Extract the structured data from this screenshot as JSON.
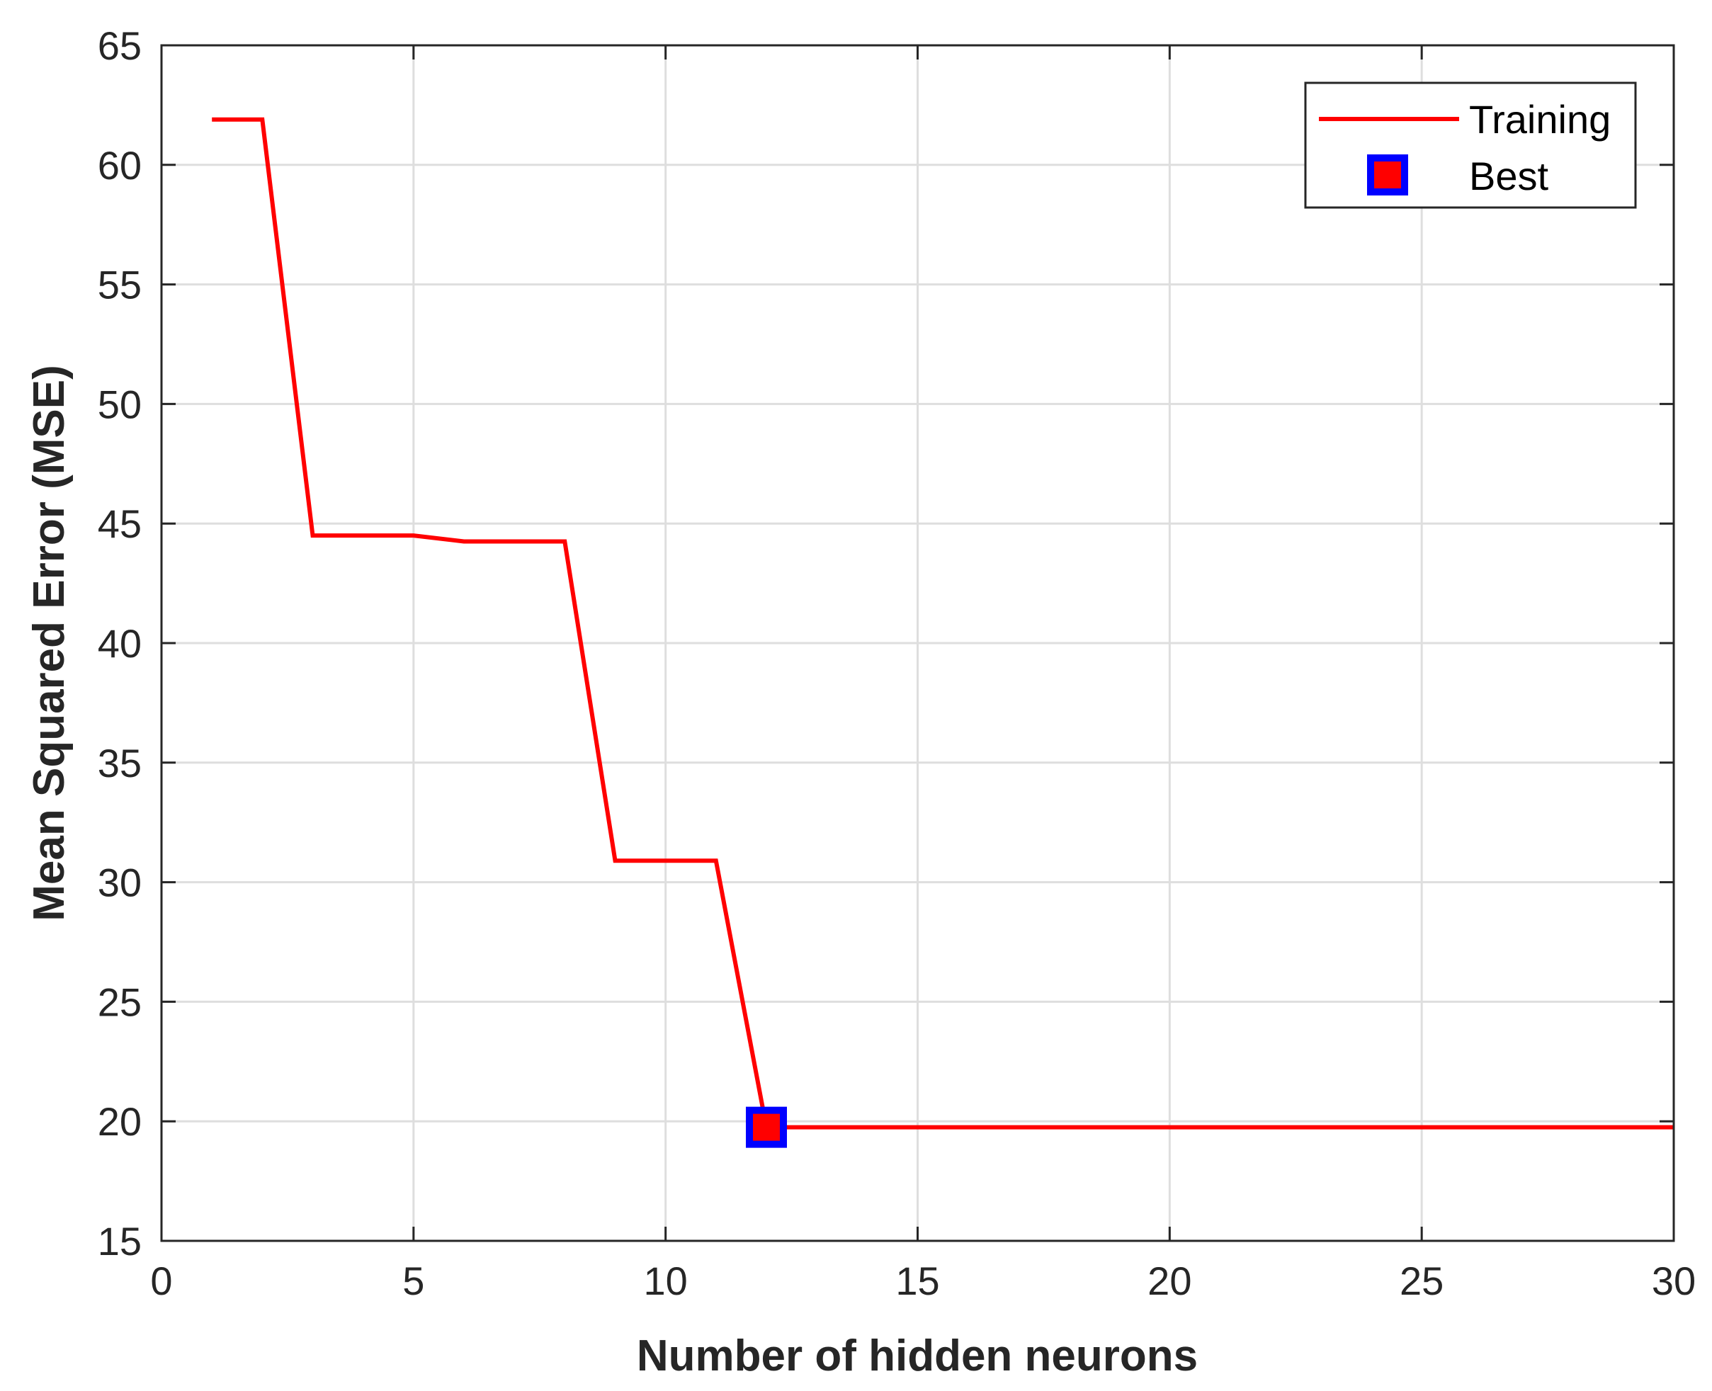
{
  "chart_data": {
    "type": "line",
    "xlabel": "Number of hidden neurons",
    "ylabel": "Mean Squared Error (MSE)",
    "xlim": [
      0,
      30
    ],
    "ylim": [
      15,
      65
    ],
    "xticks": [
      "0",
      "5",
      "10",
      "15",
      "20",
      "25",
      "30"
    ],
    "yticks": [
      "15",
      "20",
      "25",
      "30",
      "35",
      "40",
      "45",
      "50",
      "55",
      "60",
      "65"
    ],
    "grid": true,
    "legend_position": "top-right",
    "series": [
      {
        "name": "Training",
        "color": "#ff0000",
        "x": [
          1,
          2,
          3,
          4,
          5,
          6,
          7,
          8,
          9,
          10,
          11,
          12,
          13,
          14,
          15,
          16,
          17,
          18,
          19,
          20,
          21,
          22,
          23,
          24,
          25,
          26,
          27,
          28,
          29,
          30
        ],
        "y": [
          61.9,
          61.9,
          44.5,
          44.5,
          44.5,
          44.25,
          44.25,
          44.25,
          30.9,
          30.9,
          30.9,
          19.75,
          19.75,
          19.75,
          19.75,
          19.75,
          19.75,
          19.75,
          19.75,
          19.75,
          19.75,
          19.75,
          19.75,
          19.75,
          19.75,
          19.75,
          19.75,
          19.75,
          19.75,
          19.75
        ]
      }
    ],
    "best": {
      "name": "Best",
      "x": 12,
      "y": 19.75,
      "fill_color": "#ff0000",
      "edge_color": "#0000ff"
    }
  }
}
